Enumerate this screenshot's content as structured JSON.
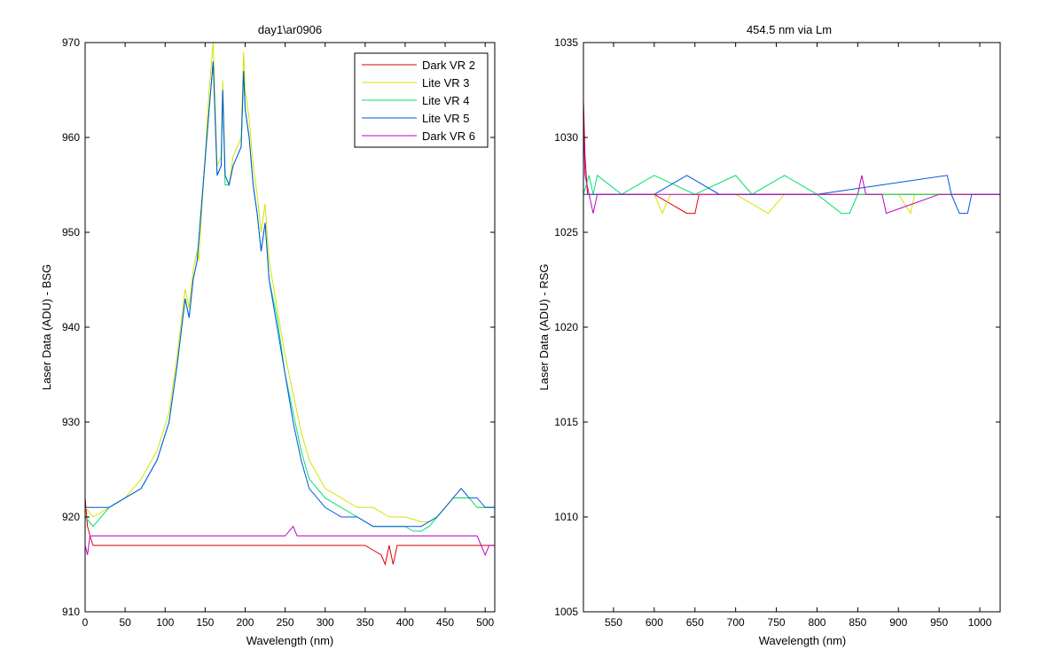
{
  "figure": {
    "background": "#ffffff"
  },
  "chart_data": [
    {
      "type": "line",
      "title": "day1\\ar0906",
      "xlabel": "Wavelength (nm)",
      "ylabel": "Laser Data (ADU) - BSG",
      "xlim": [
        0,
        512
      ],
      "ylim": [
        910,
        970
      ],
      "xticks": [
        0,
        50,
        100,
        150,
        200,
        250,
        300,
        350,
        400,
        450,
        500
      ],
      "yticks": [
        910,
        920,
        930,
        940,
        950,
        960,
        970
      ],
      "grid": false,
      "legend": "top-right",
      "series": [
        {
          "name": "Dark VR 2",
          "color": "#e00000",
          "x": [
            0,
            3,
            6,
            10,
            20,
            50,
            100,
            150,
            200,
            250,
            300,
            350,
            360,
            370,
            375,
            380,
            385,
            390,
            400,
            450,
            500,
            512
          ],
          "y": [
            922,
            919,
            918,
            917,
            917,
            917,
            917,
            917,
            917,
            917,
            917,
            917,
            916.5,
            916,
            915,
            917,
            915,
            917,
            917,
            917,
            917,
            917
          ]
        },
        {
          "name": "Lite VR 3",
          "color": "#d8e000",
          "x": [
            0,
            10,
            30,
            50,
            70,
            90,
            105,
            115,
            125,
            130,
            135,
            140,
            142,
            155,
            160,
            165,
            170,
            172,
            175,
            180,
            185,
            195,
            198,
            200,
            205,
            210,
            215,
            220,
            225,
            230,
            240,
            250,
            260,
            270,
            280,
            300,
            320,
            340,
            360,
            380,
            400,
            420,
            430,
            440,
            450,
            460,
            470,
            480,
            490,
            500,
            512
          ],
          "y": [
            921,
            920,
            921,
            922,
            924,
            927,
            931,
            937,
            944,
            942,
            946,
            948,
            947,
            965,
            970,
            957,
            958,
            966,
            956,
            955,
            958,
            960,
            969,
            965,
            962,
            957,
            954,
            950,
            953,
            947,
            942,
            937,
            933,
            929,
            926,
            923,
            922,
            921,
            921,
            920,
            920,
            919.5,
            919.5,
            920,
            921,
            922,
            922,
            922,
            921,
            921,
            921
          ]
        },
        {
          "name": "Lite VR 4",
          "color": "#00e070",
          "x": [
            0,
            10,
            30,
            50,
            70,
            90,
            105,
            115,
            125,
            130,
            135,
            140,
            155,
            160,
            165,
            170,
            172,
            175,
            180,
            185,
            195,
            198,
            200,
            205,
            210,
            215,
            220,
            225,
            230,
            240,
            250,
            260,
            270,
            280,
            300,
            320,
            340,
            360,
            380,
            400,
            410,
            420,
            430,
            440,
            450,
            460,
            470,
            480,
            490,
            500,
            512
          ],
          "y": [
            920,
            919,
            921,
            922,
            923,
            926,
            930,
            936,
            943,
            941,
            945,
            947,
            963,
            968,
            956,
            957,
            965,
            955,
            955,
            957,
            959,
            967,
            963,
            960,
            955,
            952,
            948,
            951,
            945,
            941,
            935,
            931,
            927,
            924,
            922,
            921,
            920,
            919,
            919,
            919,
            918.5,
            918.5,
            919,
            920,
            921,
            922,
            922,
            922,
            921,
            921,
            921
          ]
        },
        {
          "name": "Lite VR 5",
          "color": "#0055e0",
          "x": [
            0,
            10,
            30,
            50,
            70,
            90,
            105,
            115,
            125,
            130,
            135,
            140,
            155,
            160,
            165,
            170,
            172,
            175,
            180,
            185,
            195,
            198,
            200,
            205,
            210,
            215,
            220,
            225,
            230,
            240,
            250,
            260,
            270,
            280,
            300,
            320,
            340,
            360,
            380,
            400,
            420,
            440,
            450,
            460,
            470,
            480,
            490,
            500,
            512
          ],
          "y": [
            921,
            921,
            921,
            922,
            923,
            926,
            930,
            936,
            943,
            941,
            945,
            947,
            963,
            968,
            956,
            957,
            965,
            956,
            955,
            957,
            959,
            967,
            963,
            960,
            955,
            952,
            948,
            951,
            945,
            940,
            935,
            930,
            926,
            923,
            921,
            920,
            920,
            919,
            919,
            919,
            919,
            920,
            921,
            922,
            923,
            922,
            922,
            921,
            921
          ]
        },
        {
          "name": "Dark VR 6",
          "color": "#c000c0",
          "x": [
            0,
            3,
            6,
            10,
            50,
            100,
            150,
            200,
            250,
            260,
            265,
            270,
            300,
            350,
            400,
            450,
            490,
            495,
            500,
            505,
            512
          ],
          "y": [
            917,
            916,
            918,
            918,
            918,
            918,
            918,
            918,
            918,
            919,
            918,
            918,
            918,
            918,
            918,
            918,
            918,
            917,
            916,
            917,
            917
          ]
        }
      ]
    },
    {
      "type": "line",
      "title": "454.5 nm via Lm",
      "xlabel": "Wavelength (nm)",
      "ylabel": "Laser Data (ADU) - RSG",
      "xlim": [
        513,
        1025
      ],
      "ylim": [
        1005,
        1035
      ],
      "xticks": [
        550,
        600,
        650,
        700,
        750,
        800,
        850,
        900,
        950,
        1000
      ],
      "yticks": [
        1005,
        1010,
        1015,
        1020,
        1025,
        1030,
        1035
      ],
      "grid": false,
      "series": [
        {
          "color": "#e00000",
          "x": [
            513,
            515,
            518,
            520,
            525,
            540,
            560,
            600,
            640,
            650,
            655,
            680,
            700,
            750,
            800,
            850,
            900,
            950,
            1000,
            1025
          ],
          "y": [
            1032,
            1029,
            1027,
            1027,
            1027,
            1027,
            1027,
            1027,
            1026,
            1026,
            1027,
            1027,
            1027,
            1027,
            1027,
            1027,
            1027,
            1027,
            1027,
            1027
          ]
        },
        {
          "color": "#d8e000",
          "x": [
            513,
            520,
            600,
            610,
            620,
            700,
            740,
            760,
            800,
            850,
            900,
            915,
            920,
            1025
          ],
          "y": [
            1027,
            1027,
            1027,
            1026,
            1027,
            1027,
            1026,
            1027,
            1027,
            1027,
            1027,
            1026,
            1027,
            1027
          ]
        },
        {
          "color": "#00e070",
          "x": [
            513,
            520,
            525,
            530,
            560,
            600,
            650,
            700,
            720,
            760,
            800,
            830,
            840,
            850,
            860,
            900,
            950,
            1025
          ],
          "y": [
            1027,
            1028,
            1027,
            1028,
            1027,
            1028,
            1027,
            1028,
            1027,
            1028,
            1027,
            1026,
            1026,
            1027,
            1027,
            1027,
            1027,
            1027
          ]
        },
        {
          "color": "#0055e0",
          "x": [
            513,
            520,
            560,
            600,
            640,
            680,
            800,
            960,
            965,
            975,
            985,
            990,
            1025
          ],
          "y": [
            1027,
            1027,
            1027,
            1027,
            1028,
            1027,
            1027,
            1028,
            1027,
            1026,
            1026,
            1027,
            1027
          ]
        },
        {
          "color": "#c000c0",
          "x": [
            513,
            515,
            520,
            525,
            530,
            600,
            700,
            800,
            850,
            855,
            860,
            880,
            885,
            950,
            1000,
            1025
          ],
          "y": [
            1031,
            1028,
            1027,
            1026,
            1027,
            1027,
            1027,
            1027,
            1027,
            1028,
            1027,
            1027,
            1026,
            1027,
            1027,
            1027
          ]
        }
      ]
    }
  ]
}
